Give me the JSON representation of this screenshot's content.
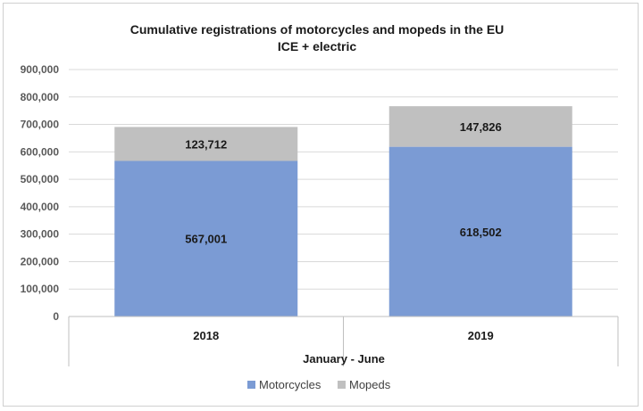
{
  "chart_data": {
    "type": "bar",
    "stacked": true,
    "title": "Cumulative registrations of motorcycles and mopeds in the EU",
    "subtitle": "ICE + electric",
    "xlabel": "January - June",
    "ylabel": "",
    "categories": [
      "2018",
      "2019"
    ],
    "series": [
      {
        "name": "Motorcycles",
        "values": [
          567001,
          618502
        ],
        "labels": [
          "567,001",
          "618,502"
        ],
        "color": "#7b9bd4"
      },
      {
        "name": "Mopeds",
        "values": [
          123712,
          147826
        ],
        "labels": [
          "123,712",
          "147,826"
        ],
        "color": "#c0c0c0"
      }
    ],
    "ylim": [
      0,
      900000
    ],
    "yticks": [
      0,
      100000,
      200000,
      300000,
      400000,
      500000,
      600000,
      700000,
      800000,
      900000
    ],
    "ytick_labels": [
      "0",
      "100,000",
      "200,000",
      "300,000",
      "400,000",
      "500,000",
      "600,000",
      "700,000",
      "800,000",
      "900,000"
    ],
    "grid": true,
    "legend_position": "bottom"
  }
}
